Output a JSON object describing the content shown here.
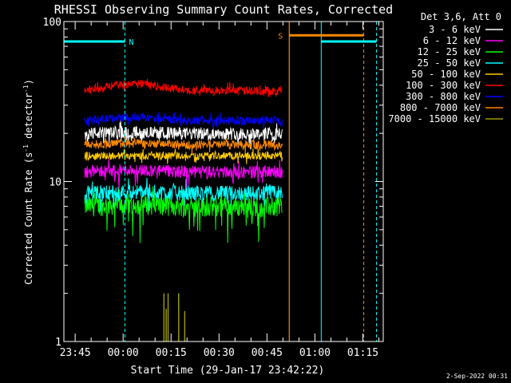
{
  "chart_data": {
    "type": "line",
    "title": "RHESSI Observing Summary Count Rates, Corrected",
    "xlabel": "Start Time (29-Jan-17 23:42:22)",
    "ylabel_main": "Corrected Count Rate (s",
    "ylabel_sup1": "-1",
    "ylabel_mid": " detector",
    "ylabel_sup2": "-1",
    "ylabel_end": ")",
    "y_scale": "log",
    "ylim": [
      1,
      100
    ],
    "xlim_minutes_from_2342": [
      -0.9,
      99
    ],
    "x_ticks": [
      {
        "label": "23:45",
        "min": 2.63
      },
      {
        "label": "00:00",
        "min": 17.63
      },
      {
        "label": "00:15",
        "min": 32.63
      },
      {
        "label": "00:30",
        "min": 47.63
      },
      {
        "label": "00:45",
        "min": 62.63
      },
      {
        "label": "01:00",
        "min": 77.63
      },
      {
        "label": "01:15",
        "min": 92.63
      }
    ],
    "y_ticks": [
      {
        "label": "100",
        "value": 100
      },
      {
        "label": "10",
        "value": 10
      },
      {
        "label": "1",
        "value": 1
      }
    ],
    "legend_header": "Det 3,6, Att 0",
    "legend_placement": "top-right outside",
    "series": [
      {
        "name": "3 - 6 keV",
        "color": "#ffffff",
        "base": 20,
        "noise": 0.05,
        "drop": 0.1,
        "bump": 0.02
      },
      {
        "name": "6 - 12 keV",
        "color": "#ff00ff",
        "base": 11.5,
        "noise": 0.05,
        "drop": 0.14,
        "bump": 0.03
      },
      {
        "name": "12 - 25 keV",
        "color": "#00ff00",
        "base": 7,
        "noise": 0.08,
        "drop": 0.25,
        "bump": 0.03
      },
      {
        "name": "25 - 50 keV",
        "color": "#00ffff",
        "base": 8.5,
        "noise": 0.06,
        "drop": 0.12,
        "bump": 0.02
      },
      {
        "name": "50 - 100 keV",
        "color": "#ffcc00",
        "base": 14.5,
        "noise": 0.03,
        "drop": 0.05,
        "bump": 0.0
      },
      {
        "name": "100 - 300 keV",
        "color": "#ff0000",
        "base": 37,
        "noise": 0.035,
        "drop": 0.03,
        "bump": 0.1
      },
      {
        "name": "300 - 800 keV",
        "color": "#0000ff",
        "base": 24,
        "noise": 0.035,
        "drop": 0.04,
        "bump": 0.05
      },
      {
        "name": "800 - 7000 keV",
        "color": "#ff8800",
        "base": 17,
        "noise": 0.035,
        "drop": 0.05,
        "bump": 0.02
      },
      {
        "name": "7000 - 15000 keV",
        "color": "#999900",
        "base": 1,
        "noise": 0,
        "drop": 0,
        "bump": 0
      }
    ],
    "segment_start_min": 5.6,
    "segment_end_min": 67.4,
    "events": {
      "night_label": "N",
      "saa_label": "S",
      "night_bar": {
        "from": -0.9,
        "to": 18.2,
        "value": 75,
        "color": "#00ffff"
      },
      "night_bar2": {
        "from": 79.6,
        "to": 96.9,
        "value": 75,
        "color": "#00ffff"
      },
      "saa_bar": {
        "from": 69.6,
        "to": 92.9,
        "value": 82,
        "color": "#ff8800"
      },
      "cyan_solid_lines": [
        -0.9,
        79.6
      ],
      "cyan_dashed_lines": [
        18.2,
        96.9
      ],
      "orange_solid_lines": [
        69.6
      ],
      "orange_dashed_lines": [
        92.9
      ]
    },
    "olive_spikes_min": [
      30.4,
      31.1,
      31.7,
      35.0,
      36.9
    ]
  },
  "footer_date": "2-Sep-2022 00:31"
}
